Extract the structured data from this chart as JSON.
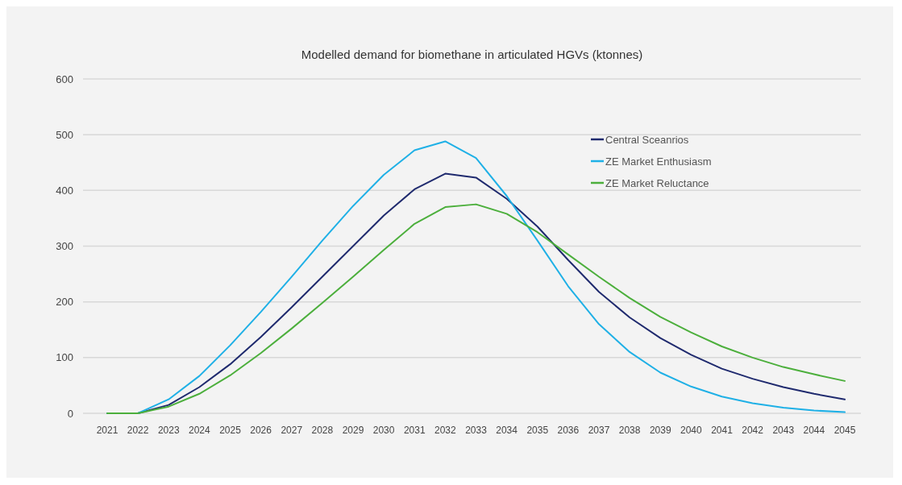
{
  "chart_data": {
    "type": "line",
    "title": "Modelled demand for biomethane in articulated HGVs (ktonnes)",
    "categories": [
      "2021",
      "2022",
      "2023",
      "2024",
      "2025",
      "2026",
      "2027",
      "2028",
      "2029",
      "2030",
      "2031",
      "2032",
      "2033",
      "2034",
      "2035",
      "2036",
      "2037",
      "2038",
      "2039",
      "2040",
      "2041",
      "2042",
      "2043",
      "2044",
      "2045"
    ],
    "series": [
      {
        "name": "Central Sceanrios",
        "color": "#1f2a6e",
        "values": [
          0,
          0,
          15,
          47,
          88,
          137,
          190,
          245,
          300,
          355,
          402,
          430,
          423,
          385,
          335,
          275,
          218,
          172,
          135,
          105,
          80,
          62,
          47,
          35,
          25
        ]
      },
      {
        "name": "ZE Market Enthusiasm",
        "color": "#1fb0e6",
        "values": [
          0,
          0,
          25,
          67,
          122,
          182,
          245,
          310,
          372,
          428,
          472,
          488,
          458,
          390,
          310,
          228,
          160,
          110,
          73,
          48,
          30,
          18,
          10,
          5,
          2
        ]
      },
      {
        "name": "ZE Market Reluctance",
        "color": "#4caf3c",
        "values": [
          0,
          0,
          12,
          35,
          68,
          108,
          152,
          198,
          245,
          293,
          340,
          370,
          375,
          358,
          325,
          285,
          245,
          207,
          173,
          145,
          120,
          100,
          83,
          70,
          58
        ]
      }
    ],
    "ylim": [
      0,
      600
    ],
    "yticks": [
      0,
      100,
      200,
      300,
      400,
      500,
      600
    ],
    "grid": "y",
    "legend": "top right",
    "marker": "none",
    "line_style": "solid"
  }
}
